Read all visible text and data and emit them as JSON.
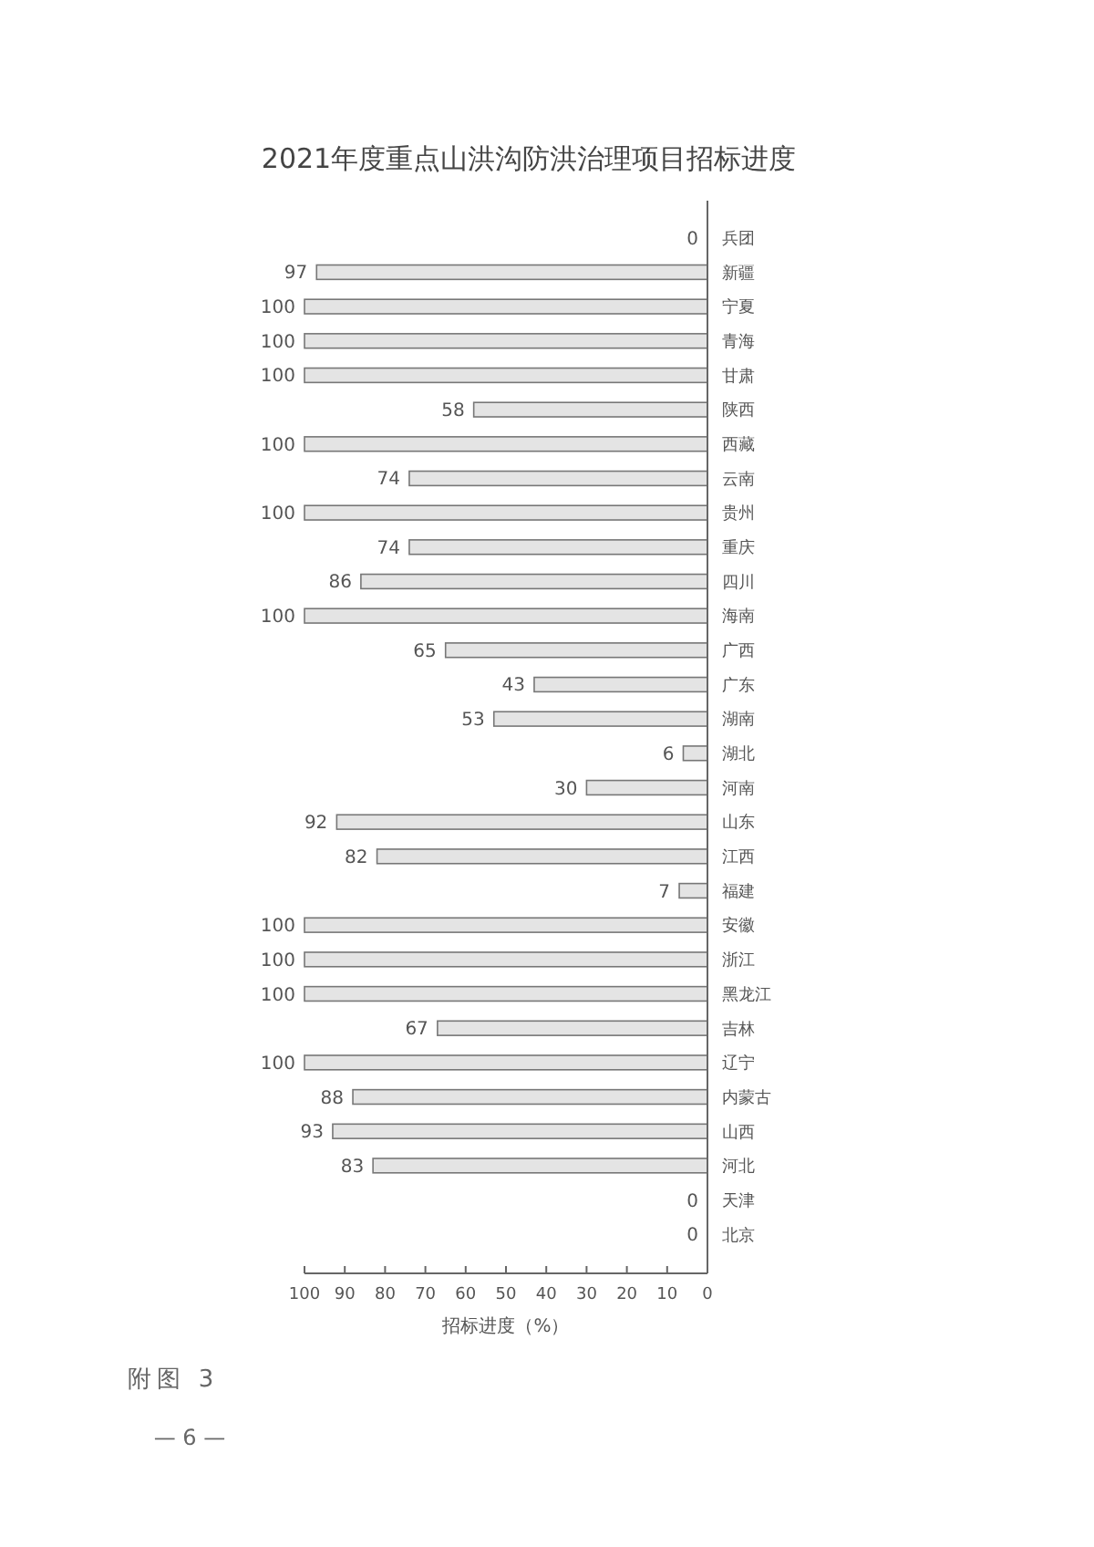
{
  "chart_data": {
    "type": "bar",
    "orientation": "horizontal",
    "title": "2021年度重点山洪沟防洪治理项目招标进度",
    "xlabel": "招标进度（%）",
    "categories": [
      "兵团",
      "新疆",
      "宁夏",
      "青海",
      "甘肃",
      "陕西",
      "西藏",
      "云南",
      "贵州",
      "重庆",
      "四川",
      "海南",
      "广西",
      "广东",
      "湖南",
      "湖北",
      "河南",
      "山东",
      "江西",
      "福建",
      "安徽",
      "浙江",
      "黑龙江",
      "吉林",
      "辽宁",
      "内蒙古",
      "山西",
      "河北",
      "天津",
      "北京"
    ],
    "values": [
      0,
      97,
      100,
      100,
      100,
      58,
      100,
      74,
      100,
      74,
      86,
      100,
      65,
      43,
      53,
      6,
      30,
      92,
      82,
      7,
      100,
      100,
      100,
      67,
      100,
      88,
      93,
      83,
      0,
      0
    ],
    "color": "#e4e4e4",
    "xlim": [
      100,
      0
    ],
    "xticks": [
      100,
      90,
      80,
      70,
      60,
      50,
      40,
      30,
      20,
      10,
      0
    ],
    "data_labels": true,
    "grid": false,
    "annotations": [
      "附图 3",
      "— 6 —"
    ]
  }
}
